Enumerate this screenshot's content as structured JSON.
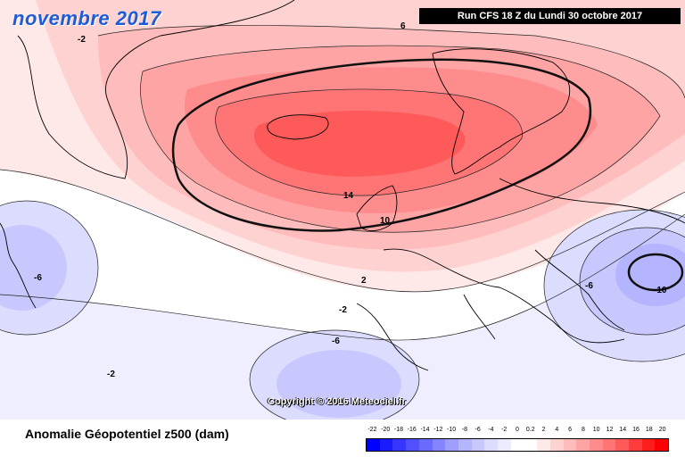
{
  "header": {
    "title": "novembre 2017",
    "run_info": "Run CFS 18 Z du Lundi 30 octobre 2017"
  },
  "map": {
    "copyright": "Copyright © 2016 Meteociel.fr",
    "contour_labels": [
      "-2",
      "6",
      "14",
      "10",
      "2",
      "-2",
      "-6",
      "-2",
      "-6",
      "-6",
      "-10"
    ]
  },
  "footer": {
    "variable_label": "Anomalie Géopotentiel z500 (dam)"
  },
  "legend": {
    "ticks": [
      "-22",
      "-20",
      "-18",
      "-16",
      "-14",
      "-12",
      "-10",
      "-8",
      "-6",
      "-4",
      "-2",
      "0",
      "0.2",
      "2",
      "4",
      "6",
      "8",
      "10",
      "12",
      "14",
      "16",
      "18",
      "20"
    ],
    "colors": [
      "#0000ff",
      "#1b1bff",
      "#3636ff",
      "#5050ff",
      "#6a6aff",
      "#8484ff",
      "#9e9eff",
      "#b4b4ff",
      "#c8c8ff",
      "#dcdcff",
      "#ececff",
      "#ffffff",
      "#ffffff",
      "#ffe8e8",
      "#ffd2d2",
      "#ffbcbc",
      "#ffa4a4",
      "#ff8c8c",
      "#ff7474",
      "#ff5a5a",
      "#ff3c3c",
      "#ff1e1e",
      "#ff0000"
    ]
  }
}
